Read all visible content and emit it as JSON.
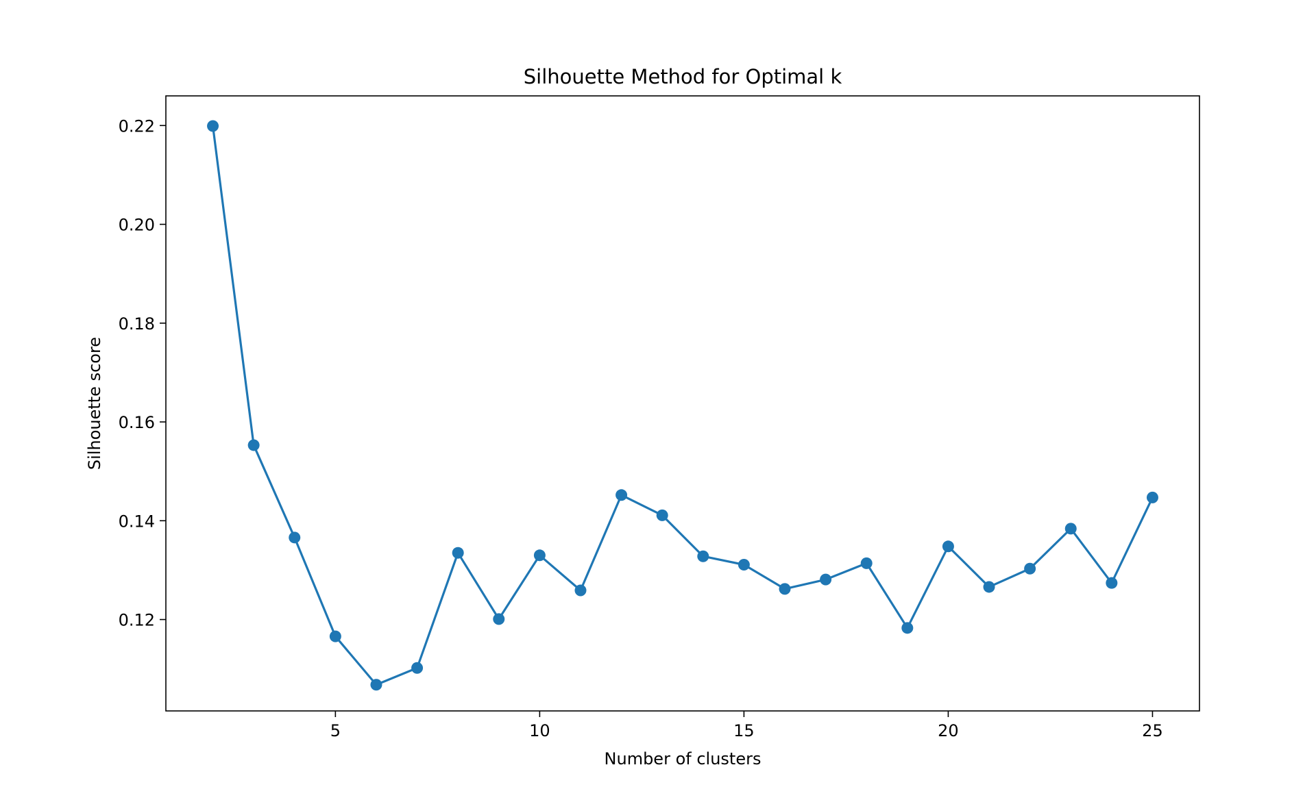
{
  "chart_data": {
    "type": "line",
    "title": "Silhouette Method for Optimal k",
    "xlabel": "Number of clusters",
    "ylabel": "Silhouette score",
    "xlim": [
      0.85,
      26.15
    ],
    "ylim": [
      0.1015,
      0.226
    ],
    "xticks": [
      5,
      10,
      15,
      20,
      25
    ],
    "xtick_labels": [
      "5",
      "10",
      "15",
      "20",
      "25"
    ],
    "yticks": [
      0.12,
      0.14,
      0.16,
      0.18,
      0.2,
      0.22
    ],
    "ytick_labels": [
      "0.12",
      "0.14",
      "0.16",
      "0.18",
      "0.20",
      "0.22"
    ],
    "grid": false,
    "marker": "circle",
    "series": [
      {
        "color": "#1f77b4",
        "x": [
          2,
          3,
          4,
          5,
          6,
          7,
          8,
          9,
          10,
          11,
          12,
          13,
          14,
          15,
          16,
          17,
          18,
          19,
          20,
          21,
          22,
          23,
          24,
          25
        ],
        "y": [
          0.2199,
          0.1553,
          0.1366,
          0.1166,
          0.1068,
          0.1102,
          0.1335,
          0.1201,
          0.133,
          0.1259,
          0.1452,
          0.1411,
          0.1328,
          0.1311,
          0.1262,
          0.1281,
          0.1314,
          0.1183,
          0.1348,
          0.1266,
          0.1303,
          0.1384,
          0.1274,
          0.1447
        ]
      }
    ]
  }
}
